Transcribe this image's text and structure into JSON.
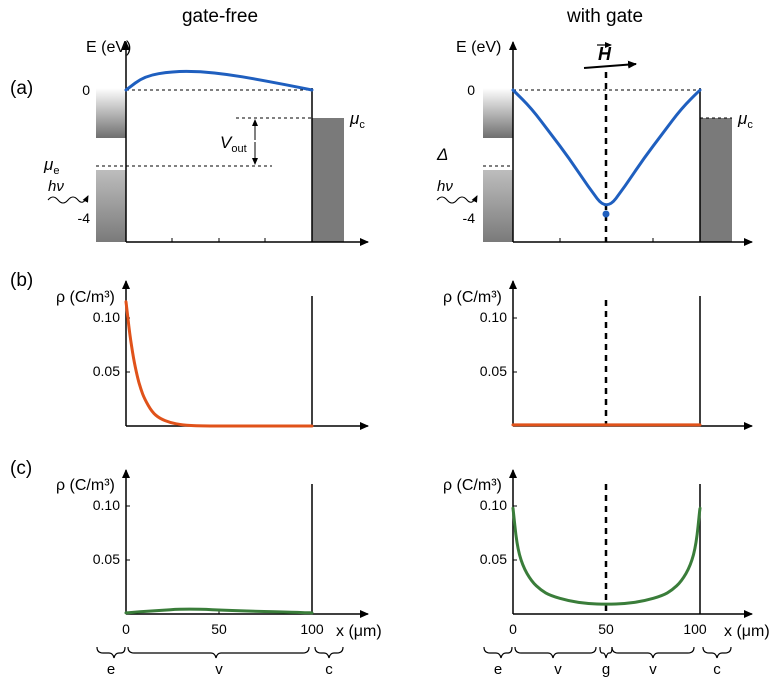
{
  "titles": {
    "left": "gate-free",
    "right": "with gate"
  },
  "panel_labels": [
    "(a)",
    "(b)",
    "(c)"
  ],
  "energy_axis": {
    "label": "E (eV)",
    "ticks": [
      "0",
      "-4"
    ]
  },
  "density_axis": {
    "label": "ρ (C/m³)",
    "ticks": [
      "0.10",
      "0.05"
    ]
  },
  "x_axis": {
    "label": "x (μm)",
    "ticks_left": [
      "0",
      "50",
      "100"
    ],
    "ticks_right": [
      "0",
      "50",
      "100"
    ]
  },
  "annotations": {
    "mu_c": "μ",
    "mu_c_sub": "c",
    "mu_e": "μ",
    "mu_e_sub": "e",
    "v_out": "V",
    "v_out_sub": "out",
    "delta": "Δ",
    "photon": "hν",
    "field": "H"
  },
  "regions": {
    "left": [
      "e",
      "v",
      "c"
    ],
    "right": [
      "e",
      "v",
      "g",
      "v",
      "c"
    ]
  },
  "colors": {
    "band": "#1f5fbf",
    "charge_b": "#e0521a",
    "charge_c": "#3a7d3a",
    "contact": "#7a7a7a"
  },
  "chart_data": [
    {
      "type": "line",
      "panel": "a-gate-free",
      "series": [
        {
          "x": [
            0,
            10,
            25,
            40,
            55,
            70,
            85,
            100
          ],
          "values": [
            0.0,
            0.45,
            0.6,
            0.6,
            0.5,
            0.35,
            0.18,
            0.0
          ]
        }
      ],
      "ylim": [
        -5,
        2
      ],
      "xlim": [
        -20,
        140
      ]
    },
    {
      "type": "line",
      "panel": "a-with-gate",
      "series": [
        {
          "x": [
            0,
            10,
            20,
            30,
            40,
            50,
            60,
            70,
            80,
            90,
            100
          ],
          "values": [
            0.0,
            -0.6,
            -1.4,
            -2.2,
            -3.1,
            -3.9,
            -3.1,
            -2.2,
            -1.4,
            -0.6,
            0.0
          ]
        }
      ],
      "ylim": [
        -5,
        2
      ],
      "xlim": [
        -20,
        140
      ]
    },
    {
      "type": "line",
      "panel": "b-gate-free",
      "series": [
        {
          "x": [
            0,
            2,
            4,
            6,
            8,
            10,
            14,
            18,
            24,
            30,
            40,
            60,
            100
          ],
          "values": [
            0.115,
            0.085,
            0.063,
            0.046,
            0.034,
            0.025,
            0.013,
            0.007,
            0.003,
            0.001,
            0.0,
            0.0,
            0.0
          ]
        }
      ],
      "ylim": [
        0,
        0.12
      ],
      "xlim": [
        -20,
        140
      ]
    },
    {
      "type": "line",
      "panel": "b-with-gate",
      "series": [
        {
          "x": [
            0,
            50,
            100
          ],
          "values": [
            0.001,
            0.001,
            0.001
          ]
        }
      ],
      "ylim": [
        0,
        0.12
      ],
      "xlim": [
        -20,
        140
      ]
    },
    {
      "type": "line",
      "panel": "c-gate-free",
      "series": [
        {
          "x": [
            0,
            15,
            33,
            60,
            100
          ],
          "values": [
            0.001,
            0.003,
            0.005,
            0.003,
            0.001
          ]
        }
      ],
      "ylim": [
        0,
        0.12
      ],
      "xlim": [
        -20,
        140
      ]
    },
    {
      "type": "line",
      "panel": "c-with-gate",
      "series": [
        {
          "x": [
            0,
            2,
            5,
            10,
            15,
            20,
            30,
            40,
            50,
            60,
            70,
            80,
            85,
            90,
            95,
            98,
            100
          ],
          "values": [
            0.098,
            0.065,
            0.045,
            0.03,
            0.022,
            0.017,
            0.012,
            0.0095,
            0.009,
            0.0095,
            0.012,
            0.017,
            0.022,
            0.03,
            0.045,
            0.065,
            0.098
          ]
        }
      ],
      "ylim": [
        0,
        0.12
      ],
      "xlim": [
        -20,
        140
      ]
    }
  ]
}
